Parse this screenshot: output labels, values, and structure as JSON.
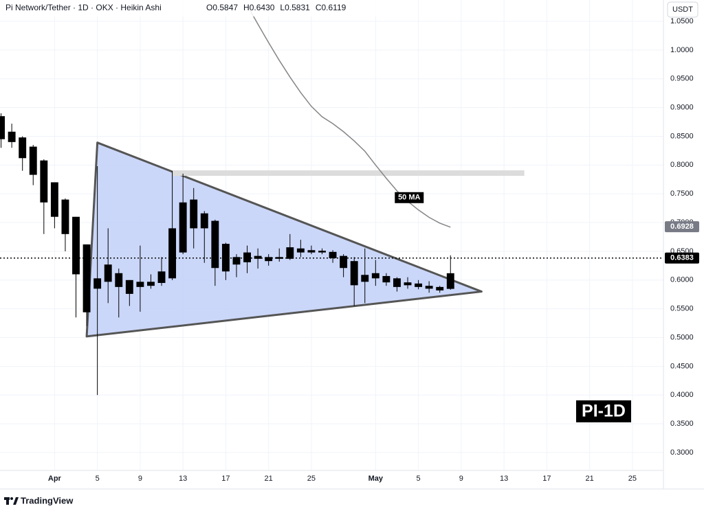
{
  "header": {
    "title": "Pi Network/Tether · 1D · OKX · Heikin Ashi",
    "ohlc": [
      "O0.5847",
      "H0.6430",
      "L0.5831",
      "C0.6119"
    ]
  },
  "currency_button": "USDT",
  "watermark": "PI-1D",
  "branding": "TradingView",
  "chart_data": {
    "type": "candlestick",
    "color": "#000000",
    "x": [
      -4,
      -3,
      -2,
      -1,
      0,
      1,
      2,
      3,
      4,
      5,
      6,
      7,
      8,
      9,
      10,
      11,
      12,
      13,
      14,
      15,
      16,
      17,
      18,
      19,
      20,
      21,
      22,
      23,
      24,
      25,
      26,
      27,
      28,
      29,
      30,
      31,
      32,
      33,
      34,
      35,
      36,
      37,
      38
    ],
    "open": [
      0.885,
      0.858,
      0.848,
      0.832,
      0.808,
      0.77,
      0.74,
      0.71,
      0.662,
      0.585,
      0.597,
      0.612,
      0.6,
      0.588,
      0.59,
      0.595,
      0.603,
      0.648,
      0.69,
      0.716,
      0.703,
      0.663,
      0.627,
      0.631,
      0.642,
      0.64,
      0.637,
      0.637,
      0.655,
      0.652,
      0.651,
      0.649,
      0.642,
      0.633,
      0.609,
      0.603,
      0.607,
      0.603,
      0.596,
      0.594,
      0.59,
      0.582,
      0.5847
    ],
    "high": [
      0.89,
      0.872,
      0.85,
      0.835,
      0.81,
      0.77,
      0.742,
      0.71,
      0.662,
      0.798,
      0.69,
      0.62,
      0.6,
      0.66,
      0.61,
      0.64,
      0.79,
      0.785,
      0.76,
      0.72,
      0.705,
      0.665,
      0.645,
      0.66,
      0.655,
      0.645,
      0.655,
      0.68,
      0.67,
      0.66,
      0.655,
      0.652,
      0.645,
      0.64,
      0.655,
      0.635,
      0.612,
      0.605,
      0.605,
      0.6,
      0.598,
      0.59,
      0.643
    ],
    "low": [
      0.83,
      0.83,
      0.79,
      0.765,
      0.68,
      0.69,
      0.65,
      0.535,
      0.52,
      0.4,
      0.56,
      0.535,
      0.555,
      0.545,
      0.585,
      0.59,
      0.6,
      0.645,
      0.655,
      0.63,
      0.59,
      0.6,
      0.605,
      0.612,
      0.62,
      0.625,
      0.632,
      0.635,
      0.64,
      0.645,
      0.645,
      0.63,
      0.605,
      0.555,
      0.56,
      0.59,
      0.59,
      0.58,
      0.585,
      0.584,
      0.578,
      0.578,
      0.5831
    ],
    "close": [
      0.845,
      0.84,
      0.812,
      0.783,
      0.735,
      0.71,
      0.68,
      0.61,
      0.544,
      0.603,
      0.627,
      0.588,
      0.576,
      0.597,
      0.597,
      0.615,
      0.69,
      0.735,
      0.74,
      0.69,
      0.621,
      0.615,
      0.64,
      0.648,
      0.637,
      0.633,
      0.64,
      0.657,
      0.648,
      0.648,
      0.648,
      0.638,
      0.621,
      0.591,
      0.597,
      0.612,
      0.596,
      0.588,
      0.591,
      0.588,
      0.585,
      0.588,
      0.6119
    ],
    "series": [
      {
        "name": "50 MA",
        "color": "#858585",
        "x": [
          19,
          20,
          21,
          22,
          23,
          24,
          25,
          26,
          27,
          28,
          29,
          30,
          31,
          32,
          33,
          34,
          35,
          36,
          37,
          38
        ],
        "values": [
          1.078,
          1.045,
          1.013,
          0.982,
          0.953,
          0.926,
          0.902,
          0.884,
          0.872,
          0.858,
          0.842,
          0.824,
          0.8,
          0.777,
          0.755,
          0.737,
          0.722,
          0.709,
          0.699,
          0.692
        ]
      }
    ],
    "price_labels": [
      {
        "value": 0.6928,
        "label": "0.6928",
        "color": "#787b86"
      },
      {
        "value": 0.6383,
        "label": "0.6383",
        "color": "#000000",
        "line": "dotted"
      }
    ],
    "drawings": {
      "triangle": {
        "x": [
          5,
          4,
          40.9
        ],
        "y": [
          0.839,
          0.502,
          0.58
        ],
        "fill": "#c5d3f8",
        "stroke": "#555555"
      },
      "level": {
        "x": [
          12,
          44.9
        ],
        "value": 0.786,
        "color": "#dcdcdc"
      }
    },
    "xlim": [
      -4.1,
      57.9
    ],
    "xticks": [
      {
        "value": 1,
        "label": "Apr"
      },
      5,
      9,
      13,
      17,
      21,
      25,
      {
        "value": 31,
        "label": "May"
      },
      {
        "value": 35,
        "label": "5"
      },
      {
        "value": 39,
        "label": "9"
      },
      {
        "value": 43,
        "label": "13"
      },
      {
        "value": 47,
        "label": "17"
      },
      {
        "value": 51,
        "label": "21"
      },
      {
        "value": 55,
        "label": "25"
      }
    ],
    "ylim": [
      0.269,
      1.087
    ],
    "yticks": [
      {
        "value": 0.3,
        "label": "0.3000"
      },
      {
        "value": 0.35,
        "label": "0.3500"
      },
      {
        "value": 0.4,
        "label": "0.4000"
      },
      {
        "value": 0.45,
        "label": "0.4500"
      },
      {
        "value": 0.5,
        "label": "0.5000"
      },
      {
        "value": 0.55,
        "label": "0.5500"
      },
      {
        "value": 0.6,
        "label": "0.6000"
      },
      {
        "value": 0.65,
        "label": "0.6500"
      },
      {
        "value": 0.7,
        "label": "0.7000"
      },
      {
        "value": 0.75,
        "label": "0.7500"
      },
      {
        "value": 0.8,
        "label": "0.8000"
      },
      {
        "value": 0.85,
        "label": "0.8500"
      },
      {
        "value": 0.9,
        "label": "0.9000"
      },
      {
        "value": 0.95,
        "label": "0.9500"
      },
      {
        "value": 1.0,
        "label": "1.0000"
      },
      {
        "value": 1.05,
        "label": "1.0500"
      }
    ],
    "grid": true
  }
}
